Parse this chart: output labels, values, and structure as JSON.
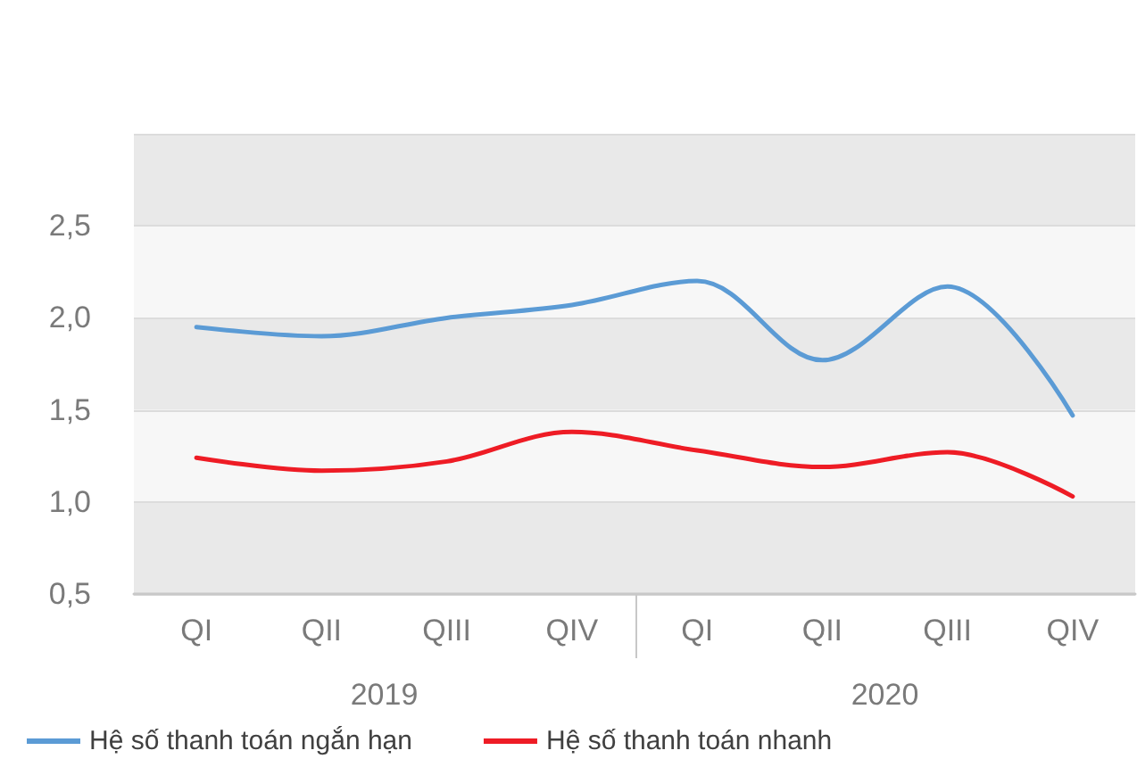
{
  "chart_data": {
    "type": "line",
    "categories": [
      "QI",
      "QII",
      "QIII",
      "QIV",
      "QI",
      "QII",
      "QIII",
      "QIV"
    ],
    "series": [
      {
        "name": "Hệ số thanh toán ngắn hạn",
        "color": "#5b9bd5",
        "values": [
          1.95,
          1.9,
          2.0,
          2.07,
          2.2,
          1.77,
          2.17,
          1.47
        ]
      },
      {
        "name": "Hệ số thanh toán nhanh",
        "color": "#ee1c25",
        "values": [
          1.24,
          1.17,
          1.22,
          1.38,
          1.28,
          1.19,
          1.27,
          1.03
        ]
      }
    ],
    "annotations": [
      "2019",
      "2020"
    ],
    "ylim": [
      0.5,
      3
    ],
    "yticks": [
      {
        "value": 0.5,
        "label": "0,5"
      },
      {
        "value": 1,
        "label": "1,0"
      },
      {
        "value": 1.5,
        "label": "1,5"
      },
      {
        "value": 2,
        "label": "2,0"
      },
      {
        "value": 2.5,
        "label": "2,5"
      },
      {
        "value": 3,
        "label": null
      }
    ],
    "grid": "y",
    "legend": "bottom left",
    "marker": "none"
  }
}
